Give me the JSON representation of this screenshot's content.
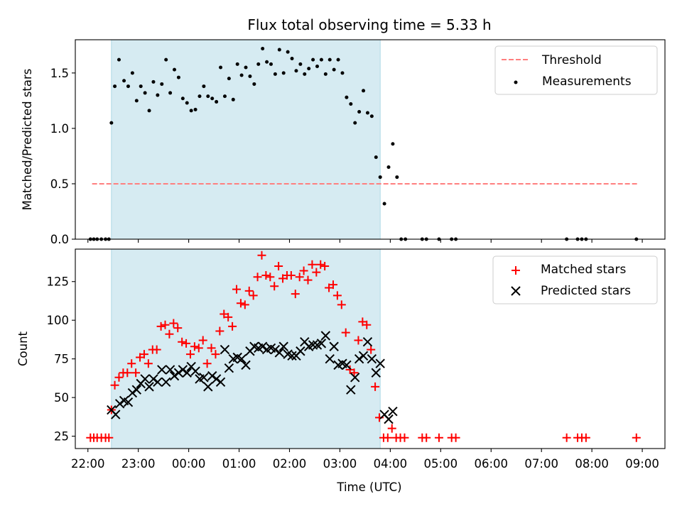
{
  "title": "Flux total observing time = 5.33 h",
  "colors": {
    "window_fill": "#add8e6",
    "threshold": "#ff7f7f",
    "measurement": "#000000",
    "matched": "#ff0000",
    "predicted": "#000000"
  },
  "chart_data": [
    {
      "type": "scatter",
      "ylabel": "Matched/Predicted stars",
      "xlim": [
        "21:45",
        "09:27"
      ],
      "ylim": [
        0,
        1.8
      ],
      "yticks": [
        0.0,
        0.5,
        1.0,
        1.5
      ],
      "ytick_labels": [
        "0.0",
        "0.5",
        "1.0",
        "1.5"
      ],
      "grid": false,
      "legend_position": "top-right",
      "observing_window": [
        "22:28",
        "03:48"
      ],
      "threshold": {
        "name": "Threshold",
        "value": 0.5,
        "x_range": [
          "22:05",
          "08:55"
        ]
      },
      "series": [
        {
          "name": "Measurements",
          "marker": "dot",
          "points": [
            [
              "22:03",
              0
            ],
            [
              "22:07",
              0
            ],
            [
              "22:11",
              0
            ],
            [
              "22:16",
              0
            ],
            [
              "22:21",
              0
            ],
            [
              "22:25",
              0
            ],
            [
              "22:28",
              1.05
            ],
            [
              "22:32",
              1.38
            ],
            [
              "22:37",
              1.62
            ],
            [
              "22:43",
              1.43
            ],
            [
              "22:48",
              1.38
            ],
            [
              "22:53",
              1.5
            ],
            [
              "22:58",
              1.25
            ],
            [
              "23:03",
              1.38
            ],
            [
              "23:08",
              1.32
            ],
            [
              "23:13",
              1.16
            ],
            [
              "23:18",
              1.42
            ],
            [
              "23:23",
              1.3
            ],
            [
              "23:28",
              1.4
            ],
            [
              "23:33",
              1.62
            ],
            [
              "23:38",
              1.32
            ],
            [
              "23:43",
              1.53
            ],
            [
              "23:48",
              1.46
            ],
            [
              "23:53",
              1.27
            ],
            [
              "23:58",
              1.23
            ],
            [
              "00:03",
              1.16
            ],
            [
              "00:08",
              1.17
            ],
            [
              "00:13",
              1.29
            ],
            [
              "00:18",
              1.38
            ],
            [
              "00:23",
              1.29
            ],
            [
              "00:28",
              1.27
            ],
            [
              "00:33",
              1.24
            ],
            [
              "00:38",
              1.55
            ],
            [
              "00:43",
              1.29
            ],
            [
              "00:48",
              1.45
            ],
            [
              "00:53",
              1.26
            ],
            [
              "00:58",
              1.58
            ],
            [
              "01:03",
              1.48
            ],
            [
              "01:08",
              1.55
            ],
            [
              "01:13",
              1.47
            ],
            [
              "01:18",
              1.4
            ],
            [
              "01:23",
              1.58
            ],
            [
              "01:28",
              1.72
            ],
            [
              "01:33",
              1.6
            ],
            [
              "01:38",
              1.58
            ],
            [
              "01:43",
              1.49
            ],
            [
              "01:48",
              1.71
            ],
            [
              "01:53",
              1.5
            ],
            [
              "01:58",
              1.69
            ],
            [
              "02:03",
              1.63
            ],
            [
              "02:08",
              1.52
            ],
            [
              "02:13",
              1.58
            ],
            [
              "02:18",
              1.49
            ],
            [
              "02:23",
              1.54
            ],
            [
              "02:28",
              1.62
            ],
            [
              "02:33",
              1.56
            ],
            [
              "02:38",
              1.62
            ],
            [
              "02:43",
              1.49
            ],
            [
              "02:48",
              1.62
            ],
            [
              "02:53",
              1.53
            ],
            [
              "02:58",
              1.62
            ],
            [
              "03:03",
              1.5
            ],
            [
              "03:08",
              1.28
            ],
            [
              "03:13",
              1.22
            ],
            [
              "03:18",
              1.05
            ],
            [
              "03:23",
              1.15
            ],
            [
              "03:28",
              1.34
            ],
            [
              "03:33",
              1.14
            ],
            [
              "03:38",
              1.11
            ],
            [
              "03:43",
              0.74
            ],
            [
              "03:48",
              0.56
            ],
            [
              "03:53",
              0.32
            ],
            [
              "03:58",
              0.65
            ],
            [
              "04:03",
              0.86
            ],
            [
              "04:08",
              0.56
            ],
            [
              "04:13",
              0
            ],
            [
              "04:18",
              0
            ],
            [
              "04:38",
              0
            ],
            [
              "04:43",
              0
            ],
            [
              "04:58",
              0
            ],
            [
              "05:13",
              0
            ],
            [
              "05:18",
              0
            ],
            [
              "07:30",
              0
            ],
            [
              "07:43",
              0
            ],
            [
              "07:48",
              0
            ],
            [
              "07:53",
              0
            ],
            [
              "08:53",
              0
            ]
          ]
        }
      ]
    },
    {
      "type": "scatter",
      "xlabel": "Time (UTC)",
      "ylabel": "Count",
      "xlim": [
        "21:45",
        "09:27"
      ],
      "ylim": [
        17,
        146
      ],
      "yticks": [
        25,
        50,
        75,
        100,
        125
      ],
      "ytick_labels": [
        "25",
        "50",
        "75",
        "100",
        "125"
      ],
      "xticks": [
        "22:00",
        "23:00",
        "00:00",
        "01:00",
        "02:00",
        "03:00",
        "04:00",
        "05:00",
        "06:00",
        "07:00",
        "08:00",
        "09:00"
      ],
      "grid": false,
      "legend_position": "top-right",
      "observing_window": [
        "22:28",
        "03:48"
      ],
      "series": [
        {
          "name": "Matched stars",
          "marker": "plus",
          "points": [
            [
              "22:03",
              24
            ],
            [
              "22:07",
              24
            ],
            [
              "22:11",
              24
            ],
            [
              "22:16",
              24
            ],
            [
              "22:21",
              24
            ],
            [
              "22:25",
              24
            ],
            [
              "22:28",
              42
            ],
            [
              "22:32",
              58
            ],
            [
              "22:37",
              63
            ],
            [
              "22:42",
              66
            ],
            [
              "22:47",
              66
            ],
            [
              "22:52",
              72
            ],
            [
              "22:57",
              66
            ],
            [
              "23:02",
              76
            ],
            [
              "23:07",
              78
            ],
            [
              "23:12",
              72
            ],
            [
              "23:17",
              81
            ],
            [
              "23:22",
              81
            ],
            [
              "23:27",
              96
            ],
            [
              "23:32",
              97
            ],
            [
              "23:37",
              91
            ],
            [
              "23:42",
              98
            ],
            [
              "23:47",
              95
            ],
            [
              "23:52",
              86
            ],
            [
              "23:57",
              85
            ],
            [
              "00:02",
              78
            ],
            [
              "00:07",
              83
            ],
            [
              "00:12",
              82
            ],
            [
              "00:17",
              87
            ],
            [
              "00:22",
              72
            ],
            [
              "00:27",
              82
            ],
            [
              "00:32",
              78
            ],
            [
              "00:37",
              93
            ],
            [
              "00:42",
              104
            ],
            [
              "00:47",
              102
            ],
            [
              "00:52",
              96
            ],
            [
              "00:57",
              120
            ],
            [
              "01:02",
              111
            ],
            [
              "01:07",
              110
            ],
            [
              "01:12",
              119
            ],
            [
              "01:17",
              116
            ],
            [
              "01:22",
              128
            ],
            [
              "01:27",
              142
            ],
            [
              "01:32",
              129
            ],
            [
              "01:37",
              128
            ],
            [
              "01:42",
              122
            ],
            [
              "01:47",
              135
            ],
            [
              "01:52",
              127
            ],
            [
              "01:57",
              129
            ],
            [
              "02:02",
              129
            ],
            [
              "02:07",
              117
            ],
            [
              "02:12",
              128
            ],
            [
              "02:17",
              132
            ],
            [
              "02:22",
              126
            ],
            [
              "02:27",
              136
            ],
            [
              "02:32",
              131
            ],
            [
              "02:37",
              136
            ],
            [
              "02:42",
              135
            ],
            [
              "02:47",
              121
            ],
            [
              "02:52",
              123
            ],
            [
              "02:57",
              116
            ],
            [
              "03:02",
              110
            ],
            [
              "03:07",
              92
            ],
            [
              "03:12",
              68
            ],
            [
              "03:17",
              66
            ],
            [
              "03:22",
              87
            ],
            [
              "03:27",
              99
            ],
            [
              "03:32",
              97
            ],
            [
              "03:37",
              81
            ],
            [
              "03:42",
              57
            ],
            [
              "03:47",
              37
            ],
            [
              "03:52",
              24
            ],
            [
              "03:57",
              24
            ],
            [
              "04:02",
              30
            ],
            [
              "04:07",
              24
            ],
            [
              "04:12",
              24
            ],
            [
              "04:17",
              24
            ],
            [
              "04:38",
              24
            ],
            [
              "04:43",
              24
            ],
            [
              "04:58",
              24
            ],
            [
              "05:13",
              24
            ],
            [
              "05:18",
              24
            ],
            [
              "07:30",
              24
            ],
            [
              "07:43",
              24
            ],
            [
              "07:48",
              24
            ],
            [
              "07:53",
              24
            ],
            [
              "08:53",
              24
            ]
          ]
        },
        {
          "name": "Predicted stars",
          "marker": "x",
          "points": [
            [
              "22:28",
              42
            ],
            [
              "22:33",
              39
            ],
            [
              "22:38",
              46
            ],
            [
              "22:43",
              48
            ],
            [
              "22:48",
              47
            ],
            [
              "22:53",
              53
            ],
            [
              "22:58",
              55
            ],
            [
              "23:03",
              59
            ],
            [
              "23:08",
              62
            ],
            [
              "23:13",
              57
            ],
            [
              "23:18",
              62
            ],
            [
              "23:23",
              60
            ],
            [
              "23:28",
              68
            ],
            [
              "23:33",
              60
            ],
            [
              "23:38",
              68
            ],
            [
              "23:43",
              64
            ],
            [
              "23:48",
              66
            ],
            [
              "23:53",
              68
            ],
            [
              "23:58",
              66
            ],
            [
              "00:03",
              70
            ],
            [
              "00:08",
              67
            ],
            [
              "00:13",
              62
            ],
            [
              "00:18",
              63
            ],
            [
              "00:23",
              57
            ],
            [
              "00:28",
              64
            ],
            [
              "00:33",
              62
            ],
            [
              "00:38",
              60
            ],
            [
              "00:43",
              81
            ],
            [
              "00:48",
              69
            ],
            [
              "00:53",
              75
            ],
            [
              "00:58",
              76
            ],
            [
              "01:03",
              75
            ],
            [
              "01:08",
              71
            ],
            [
              "01:13",
              80
            ],
            [
              "01:18",
              83
            ],
            [
              "01:23",
              82
            ],
            [
              "01:28",
              83
            ],
            [
              "01:33",
              81
            ],
            [
              "01:38",
              82
            ],
            [
              "01:43",
              81
            ],
            [
              "01:48",
              79
            ],
            [
              "01:53",
              83
            ],
            [
              "01:58",
              78
            ],
            [
              "02:03",
              77
            ],
            [
              "02:08",
              77
            ],
            [
              "02:13",
              80
            ],
            [
              "02:18",
              86
            ],
            [
              "02:23",
              83
            ],
            [
              "02:28",
              84
            ],
            [
              "02:33",
              84
            ],
            [
              "02:38",
              85
            ],
            [
              "02:43",
              90
            ],
            [
              "02:48",
              75
            ],
            [
              "02:53",
              83
            ],
            [
              "02:58",
              71
            ],
            [
              "03:03",
              72
            ],
            [
              "03:08",
              71
            ],
            [
              "03:13",
              55
            ],
            [
              "03:18",
              63
            ],
            [
              "03:23",
              75
            ],
            [
              "03:28",
              77
            ],
            [
              "03:33",
              86
            ],
            [
              "03:38",
              75
            ],
            [
              "03:43",
              66
            ],
            [
              "03:48",
              72
            ],
            [
              "03:53",
              39
            ],
            [
              "03:58",
              36
            ],
            [
              "04:03",
              41
            ]
          ]
        }
      ]
    }
  ]
}
